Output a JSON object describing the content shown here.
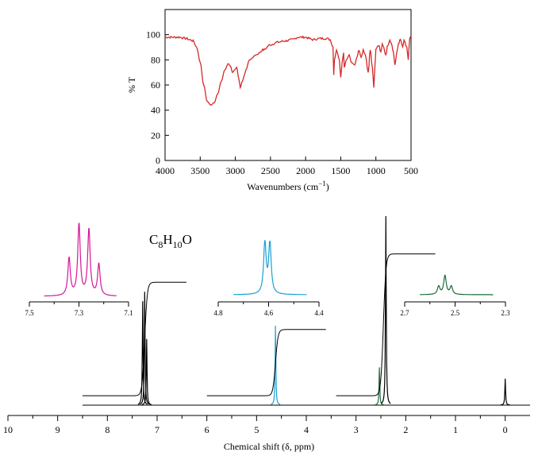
{
  "chart_data": [
    {
      "type": "line",
      "name": "ir-spectrum",
      "xlabel": "Wavenumbers (cm",
      "xlabel_sup": "−1",
      "xlabel_end": ")",
      "ylabel": "% T",
      "xlim": [
        4000,
        500
      ],
      "ylim": [
        0,
        120
      ],
      "x_ticks": [
        "4000",
        "3500",
        "3000",
        "2500",
        "2000",
        "1500",
        "1000",
        "500"
      ],
      "y_ticks": [
        "0",
        "20",
        "40",
        "60",
        "80",
        "100"
      ],
      "color": "#d62828",
      "x": [
        4000,
        3800,
        3700,
        3650,
        3600,
        3550,
        3500,
        3450,
        3400,
        3350,
        3300,
        3250,
        3200,
        3150,
        3100,
        3070,
        3040,
        3010,
        2980,
        2950,
        2930,
        2900,
        2870,
        2850,
        2800,
        2700,
        2600,
        2500,
        2400,
        2300,
        2200,
        2100,
        2000,
        1950,
        1900,
        1800,
        1700,
        1650,
        1610,
        1600,
        1590,
        1560,
        1520,
        1500,
        1480,
        1460,
        1450,
        1420,
        1380,
        1350,
        1300,
        1270,
        1240,
        1210,
        1180,
        1150,
        1110,
        1080,
        1050,
        1030,
        1010,
        1000,
        960,
        930,
        910,
        890,
        860,
        830,
        800,
        780,
        750,
        730,
        700,
        680,
        650,
        620,
        600,
        560,
        540,
        520,
        500
      ],
      "y": [
        98,
        98,
        97,
        96,
        95,
        90,
        78,
        60,
        47,
        44,
        46,
        53,
        63,
        72,
        77,
        75,
        70,
        72,
        74,
        65,
        58,
        63,
        68,
        72,
        80,
        84,
        88,
        92,
        94,
        95,
        96,
        98,
        98,
        97,
        96,
        97,
        97,
        96,
        90,
        68,
        80,
        88,
        80,
        66,
        78,
        86,
        74,
        80,
        84,
        78,
        76,
        82,
        88,
        82,
        88,
        84,
        70,
        88,
        74,
        58,
        78,
        89,
        92,
        86,
        92,
        90,
        84,
        92,
        96,
        93,
        86,
        76,
        86,
        93,
        96,
        90,
        95,
        90,
        80,
        96,
        99
      ]
    },
    {
      "type": "line",
      "name": "nmr-spectrum",
      "xlabel": "Chemical shift (δ, ppm)",
      "xlim": [
        10,
        -0.5
      ],
      "x_ticks": [
        "10",
        "9",
        "8",
        "7",
        "6",
        "5",
        "4",
        "3",
        "2",
        "1",
        "0"
      ],
      "formula": {
        "base1": "C",
        "sub1": "8",
        "base2": "H",
        "sub2": "10",
        "base3": "O"
      },
      "peaks": [
        {
          "center_ppm": 7.29,
          "height": 0.55,
          "color": "#000000"
        },
        {
          "center_ppm": 7.25,
          "height": 0.6,
          "color": "#000000"
        },
        {
          "center_ppm": 7.21,
          "height": 0.35,
          "color": "#000000"
        },
        {
          "center_ppm": 4.62,
          "height": 0.42,
          "color": "#19a0d6"
        },
        {
          "center_ppm": 2.53,
          "height": 0.2,
          "color": "#1a6b3a"
        },
        {
          "center_ppm": 2.4,
          "height": 1.0,
          "color": "#000000"
        },
        {
          "center_ppm": 0.0,
          "height": 0.14,
          "color": "#000000"
        }
      ],
      "integrals": [
        {
          "from_ppm": 8.5,
          "to_ppm": 6.4,
          "center_ppm": 7.25,
          "start": 0.05,
          "end": 0.65
        },
        {
          "from_ppm": 6.0,
          "to_ppm": 3.6,
          "center_ppm": 4.62,
          "start": 0.05,
          "end": 0.4
        },
        {
          "from_ppm": 3.4,
          "to_ppm": 1.4,
          "center_ppm": 2.45,
          "start": 0.05,
          "end": 0.8
        }
      ],
      "insets": [
        {
          "name": "aromatic",
          "color": "#d6169b",
          "xlim": [
            7.5,
            7.1
          ],
          "x_ticks": [
            "7.5",
            "7.3",
            "7.1"
          ],
          "peaks": [
            {
              "center_ppm": 7.34,
              "height": 0.5
            },
            {
              "center_ppm": 7.3,
              "height": 0.95
            },
            {
              "center_ppm": 7.26,
              "height": 0.88
            },
            {
              "center_ppm": 7.22,
              "height": 0.42
            }
          ]
        },
        {
          "name": "methylene",
          "color": "#19a0d6",
          "xlim": [
            4.8,
            4.4
          ],
          "x_ticks": [
            "4.8",
            "4.6",
            "4.4"
          ],
          "peaks": [
            {
              "center_ppm": 4.615,
              "height": 0.95
            },
            {
              "center_ppm": 4.595,
              "height": 0.95
            }
          ]
        },
        {
          "name": "hydroxyl",
          "color": "#1a6b3a",
          "xlim": [
            2.7,
            2.3
          ],
          "x_ticks": [
            "2.7",
            "2.5",
            "2.3"
          ],
          "peaks": [
            {
              "center_ppm": 2.54,
              "height": 0.7
            },
            {
              "center_ppm": 2.565,
              "height": 0.3
            },
            {
              "center_ppm": 2.515,
              "height": 0.3
            }
          ]
        }
      ]
    }
  ]
}
